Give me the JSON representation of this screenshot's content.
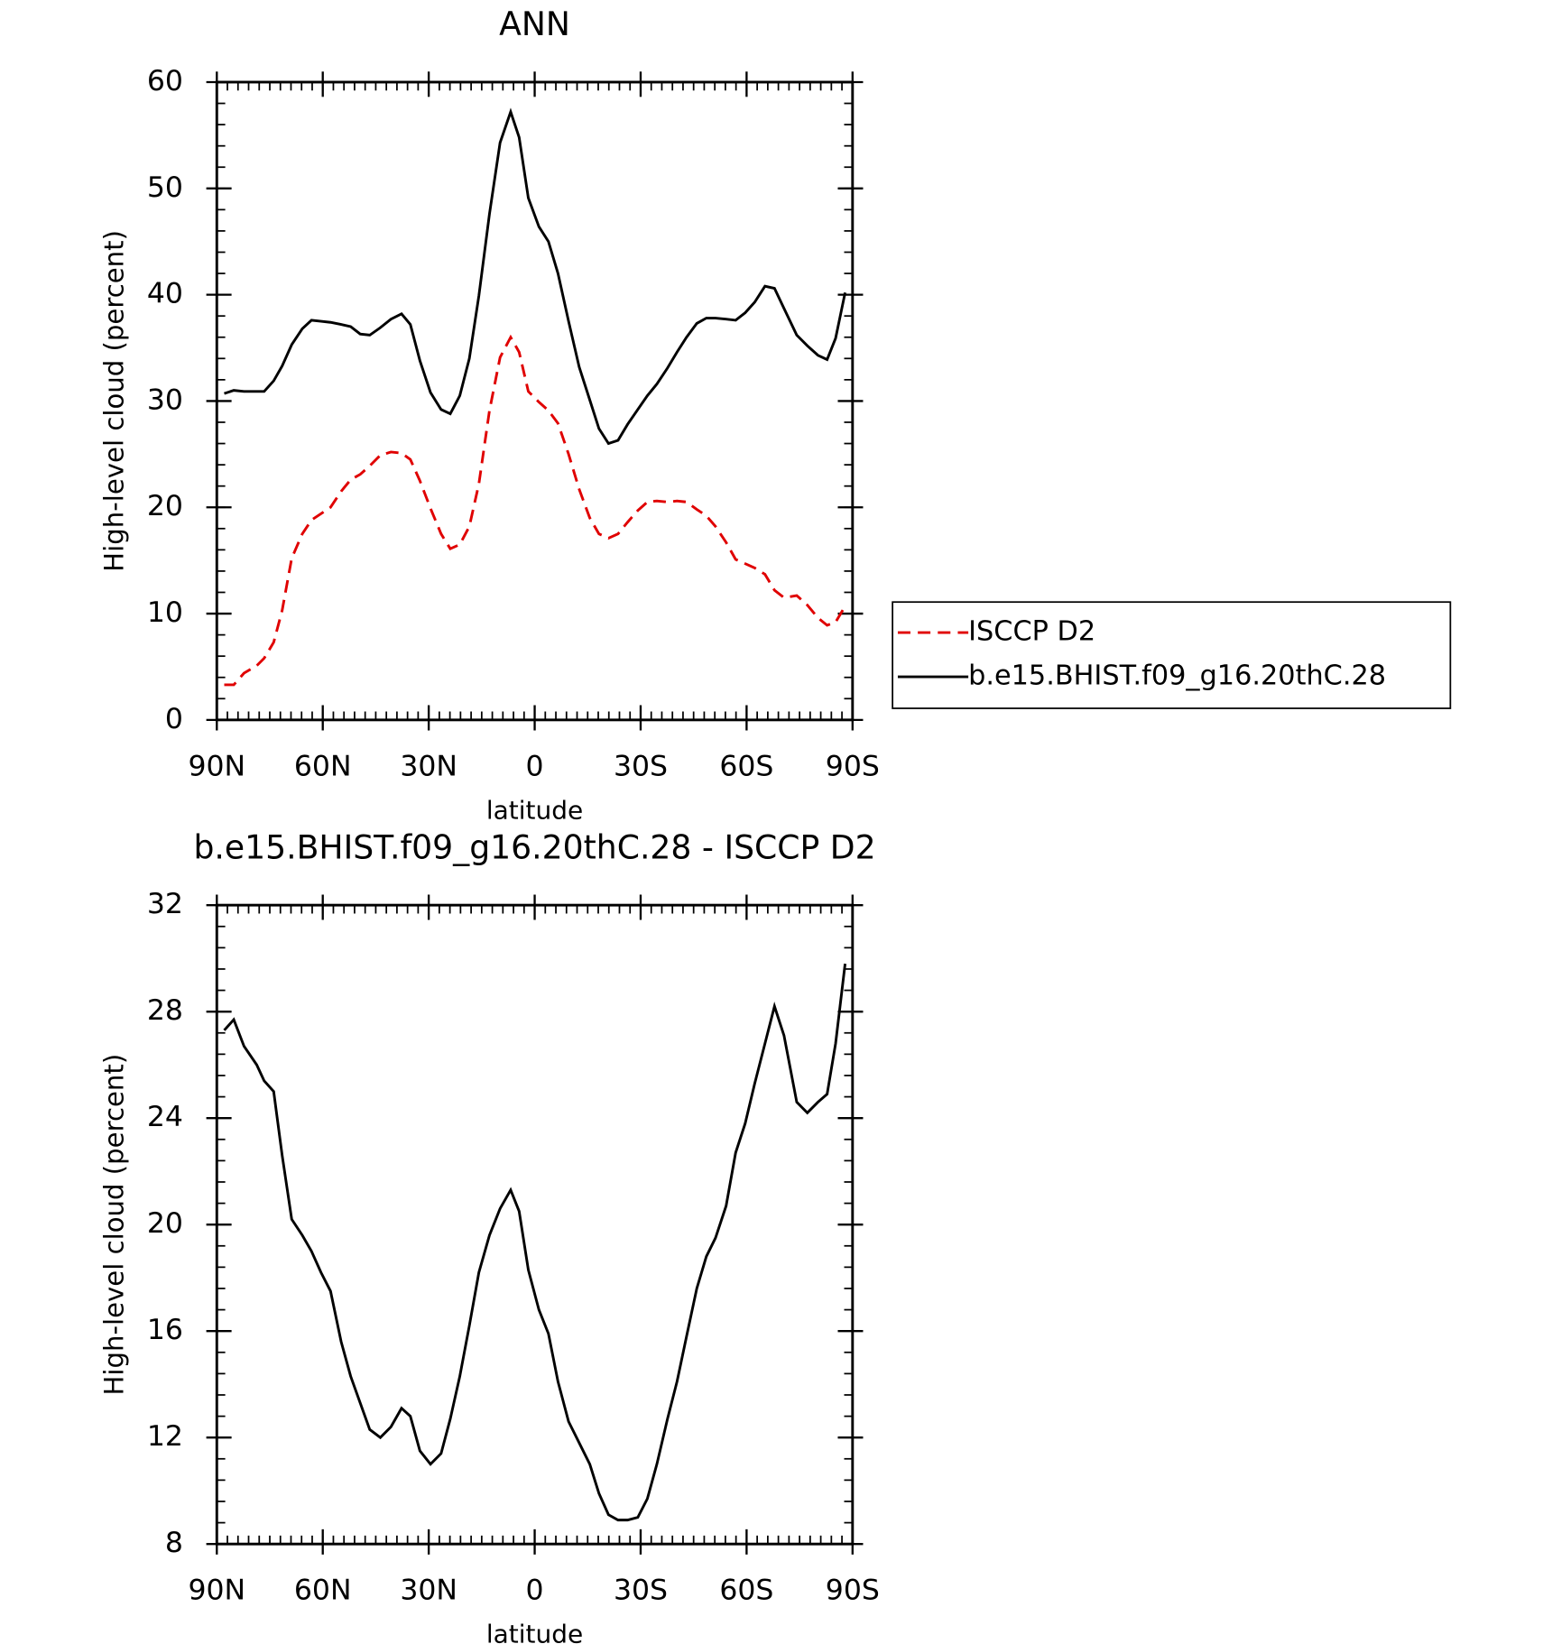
{
  "chart_data": [
    {
      "type": "line",
      "title": "ANN",
      "x_label": "latitude",
      "y_label": "High-level cloud (percent)",
      "xlim": [
        90,
        -90
      ],
      "xticks": [
        {
          "value": 90,
          "label": "90N"
        },
        {
          "value": 60,
          "label": "60N"
        },
        {
          "value": 30,
          "label": "30N"
        },
        0,
        {
          "value": -30,
          "label": "30S"
        },
        {
          "value": -60,
          "label": "60S"
        },
        {
          "value": -90,
          "label": "90S"
        }
      ],
      "xminor": 3,
      "ylim": [
        0,
        60
      ],
      "yticks": [
        0,
        10,
        20,
        30,
        40,
        50,
        60
      ],
      "yminor": 2,
      "legend": "right",
      "x": [
        87.9,
        85.2,
        82.3,
        78.7,
        76.6,
        73.9,
        71.5,
        68.8,
        65.8,
        63.2,
        60.5,
        57.8,
        54.8,
        52.1,
        49.4,
        46.7,
        43.7,
        40.7,
        37.7,
        35.2,
        32.5,
        29.5,
        26.5,
        23.9,
        21.2,
        18.5,
        15.8,
        12.8,
        9.8,
        6.8,
        4.4,
        1.8,
        -1.2,
        -3.9,
        -6.6,
        -9.6,
        -12.6,
        -15.6,
        -18.2,
        -20.9,
        -23.6,
        -26.3,
        -29.2,
        -31.9,
        -34.6,
        -37.6,
        -40.3,
        -43.0,
        -45.9,
        -48.6,
        -51.2,
        -54.2,
        -56.9,
        -59.6,
        -62.3,
        -65.2,
        -67.9,
        -70.6,
        -74.2,
        -77.2,
        -80.2,
        -82.8,
        -85.2,
        -87.9
      ],
      "series": [
        {
          "name": "ISCCP D2",
          "color": "#e00000",
          "linestyle": "dashed",
          "values": [
            3.3,
            3.3,
            4.4,
            5.1,
            5.8,
            7.3,
            10.3,
            15.2,
            17.5,
            18.8,
            19.4,
            20.0,
            21.5,
            22.6,
            23.1,
            23.9,
            24.9,
            25.2,
            25.1,
            24.5,
            22.5,
            19.9,
            17.5,
            16.1,
            16.5,
            18.2,
            22.2,
            29.1,
            34.1,
            36.0,
            34.6,
            30.9,
            29.9,
            29.1,
            27.9,
            25.0,
            21.7,
            19.0,
            17.5,
            17.1,
            17.5,
            18.6,
            19.7,
            20.5,
            20.6,
            20.5,
            20.6,
            20.5,
            19.8,
            19.2,
            18.2,
            16.7,
            15.1,
            14.7,
            14.3,
            13.7,
            12.2,
            11.5,
            11.7,
            10.8,
            9.6,
            8.9,
            9.2,
            10.7
          ]
        },
        {
          "name": "b.e15.BHIST.f09_g16.20thC.28",
          "color": "#000000",
          "linestyle": "solid",
          "values": [
            30.7,
            31.0,
            30.9,
            30.9,
            30.9,
            31.9,
            33.3,
            35.3,
            36.8,
            37.6,
            37.5,
            37.4,
            37.2,
            37.0,
            36.3,
            36.2,
            36.9,
            37.7,
            38.2,
            37.2,
            33.8,
            30.8,
            29.2,
            28.8,
            30.5,
            34.0,
            39.9,
            47.6,
            54.3,
            57.2,
            54.8,
            49.1,
            46.4,
            45.0,
            42.0,
            37.5,
            33.2,
            30.1,
            27.4,
            26.0,
            26.3,
            27.8,
            29.2,
            30.5,
            31.6,
            33.1,
            34.6,
            36.0,
            37.3,
            37.8,
            37.8,
            37.7,
            37.6,
            38.3,
            39.3,
            40.8,
            40.6,
            38.7,
            36.2,
            35.2,
            34.3,
            33.9,
            35.9,
            40.2
          ]
        }
      ]
    },
    {
      "type": "line",
      "title": "b.e15.BHIST.f09_g16.20thC.28 - ISCCP D2",
      "x_label": "latitude",
      "y_label": "High-level cloud (percent)",
      "xlim": [
        90,
        -90
      ],
      "xticks": [
        {
          "value": 90,
          "label": "90N"
        },
        {
          "value": 60,
          "label": "60N"
        },
        {
          "value": 30,
          "label": "30N"
        },
        0,
        {
          "value": -30,
          "label": "30S"
        },
        {
          "value": -60,
          "label": "60S"
        },
        {
          "value": -90,
          "label": "90S"
        }
      ],
      "xminor": 3,
      "ylim": [
        8,
        32
      ],
      "yticks": [
        8,
        12,
        16,
        20,
        24,
        28,
        32
      ],
      "yminor": 0.8,
      "color": "#000000",
      "linestyle": "solid",
      "x": [
        87.9,
        85.2,
        82.3,
        78.7,
        76.6,
        73.9,
        71.5,
        68.8,
        65.8,
        63.2,
        60.5,
        57.8,
        54.8,
        52.1,
        49.4,
        46.7,
        43.7,
        40.7,
        37.7,
        35.2,
        32.5,
        29.5,
        26.5,
        23.9,
        21.2,
        18.5,
        15.8,
        12.8,
        9.8,
        6.8,
        4.4,
        1.8,
        -1.2,
        -3.9,
        -6.6,
        -9.6,
        -12.6,
        -15.6,
        -18.2,
        -20.9,
        -23.6,
        -26.3,
        -29.2,
        -31.9,
        -34.6,
        -37.6,
        -40.3,
        -43.0,
        -45.9,
        -48.6,
        -51.2,
        -54.2,
        -56.9,
        -59.6,
        -62.3,
        -65.2,
        -67.9,
        -70.6,
        -74.2,
        -77.2,
        -80.2,
        -82.8,
        -85.2,
        -87.9
      ],
      "values": [
        27.3,
        27.7,
        26.7,
        26.0,
        25.4,
        25.0,
        22.6,
        20.2,
        19.6,
        19.0,
        18.2,
        17.5,
        15.6,
        14.3,
        13.3,
        12.3,
        12.0,
        12.4,
        13.1,
        12.8,
        11.5,
        11.0,
        11.4,
        12.7,
        14.3,
        16.2,
        18.2,
        19.6,
        20.6,
        21.3,
        20.5,
        18.3,
        16.8,
        15.9,
        14.1,
        12.6,
        11.8,
        11.0,
        9.9,
        9.1,
        8.9,
        8.9,
        9.0,
        9.7,
        11.0,
        12.7,
        14.1,
        15.8,
        17.6,
        18.8,
        19.5,
        20.7,
        22.7,
        23.8,
        25.3,
        26.8,
        28.2,
        27.1,
        24.6,
        24.2,
        24.6,
        24.9,
        26.8,
        29.8
      ]
    }
  ]
}
